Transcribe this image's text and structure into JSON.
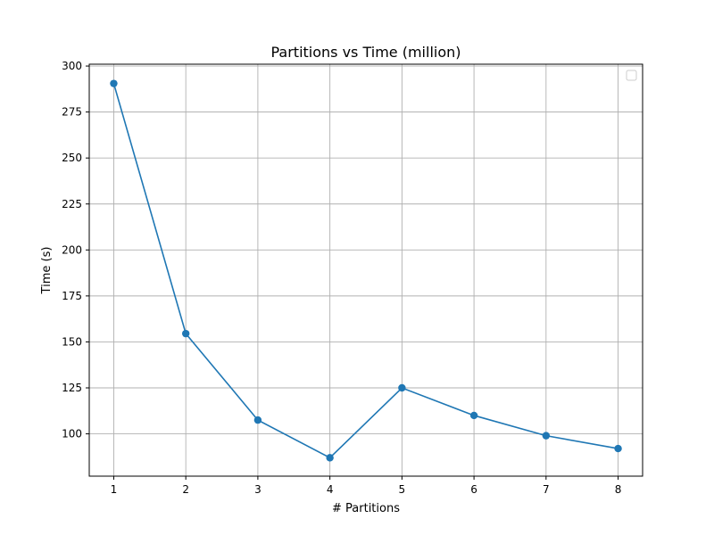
{
  "chart_data": {
    "type": "line",
    "title": "Partitions vs Time (million)",
    "xlabel": "# Partitions",
    "ylabel": "Time (s)",
    "x": [
      1,
      2,
      3,
      4,
      5,
      6,
      7,
      8
    ],
    "series": [
      {
        "values": [
          290.5,
          154.5,
          107.5,
          87.0,
          125.0,
          110.0,
          99.0,
          92.0
        ]
      }
    ],
    "xlim": [
      0.66,
      8.34
    ],
    "ylim": [
      77,
      301
    ],
    "xticks": [
      1,
      2,
      3,
      4,
      5,
      6,
      7,
      8
    ],
    "yticks": [
      100,
      125,
      150,
      175,
      200,
      225,
      250,
      275,
      300
    ],
    "grid": true,
    "legend": {
      "placement": "top-right",
      "entries": []
    },
    "colors": {
      "series": "#1f77b4",
      "grid": "#b0b0b0",
      "axes": "#000000"
    }
  }
}
